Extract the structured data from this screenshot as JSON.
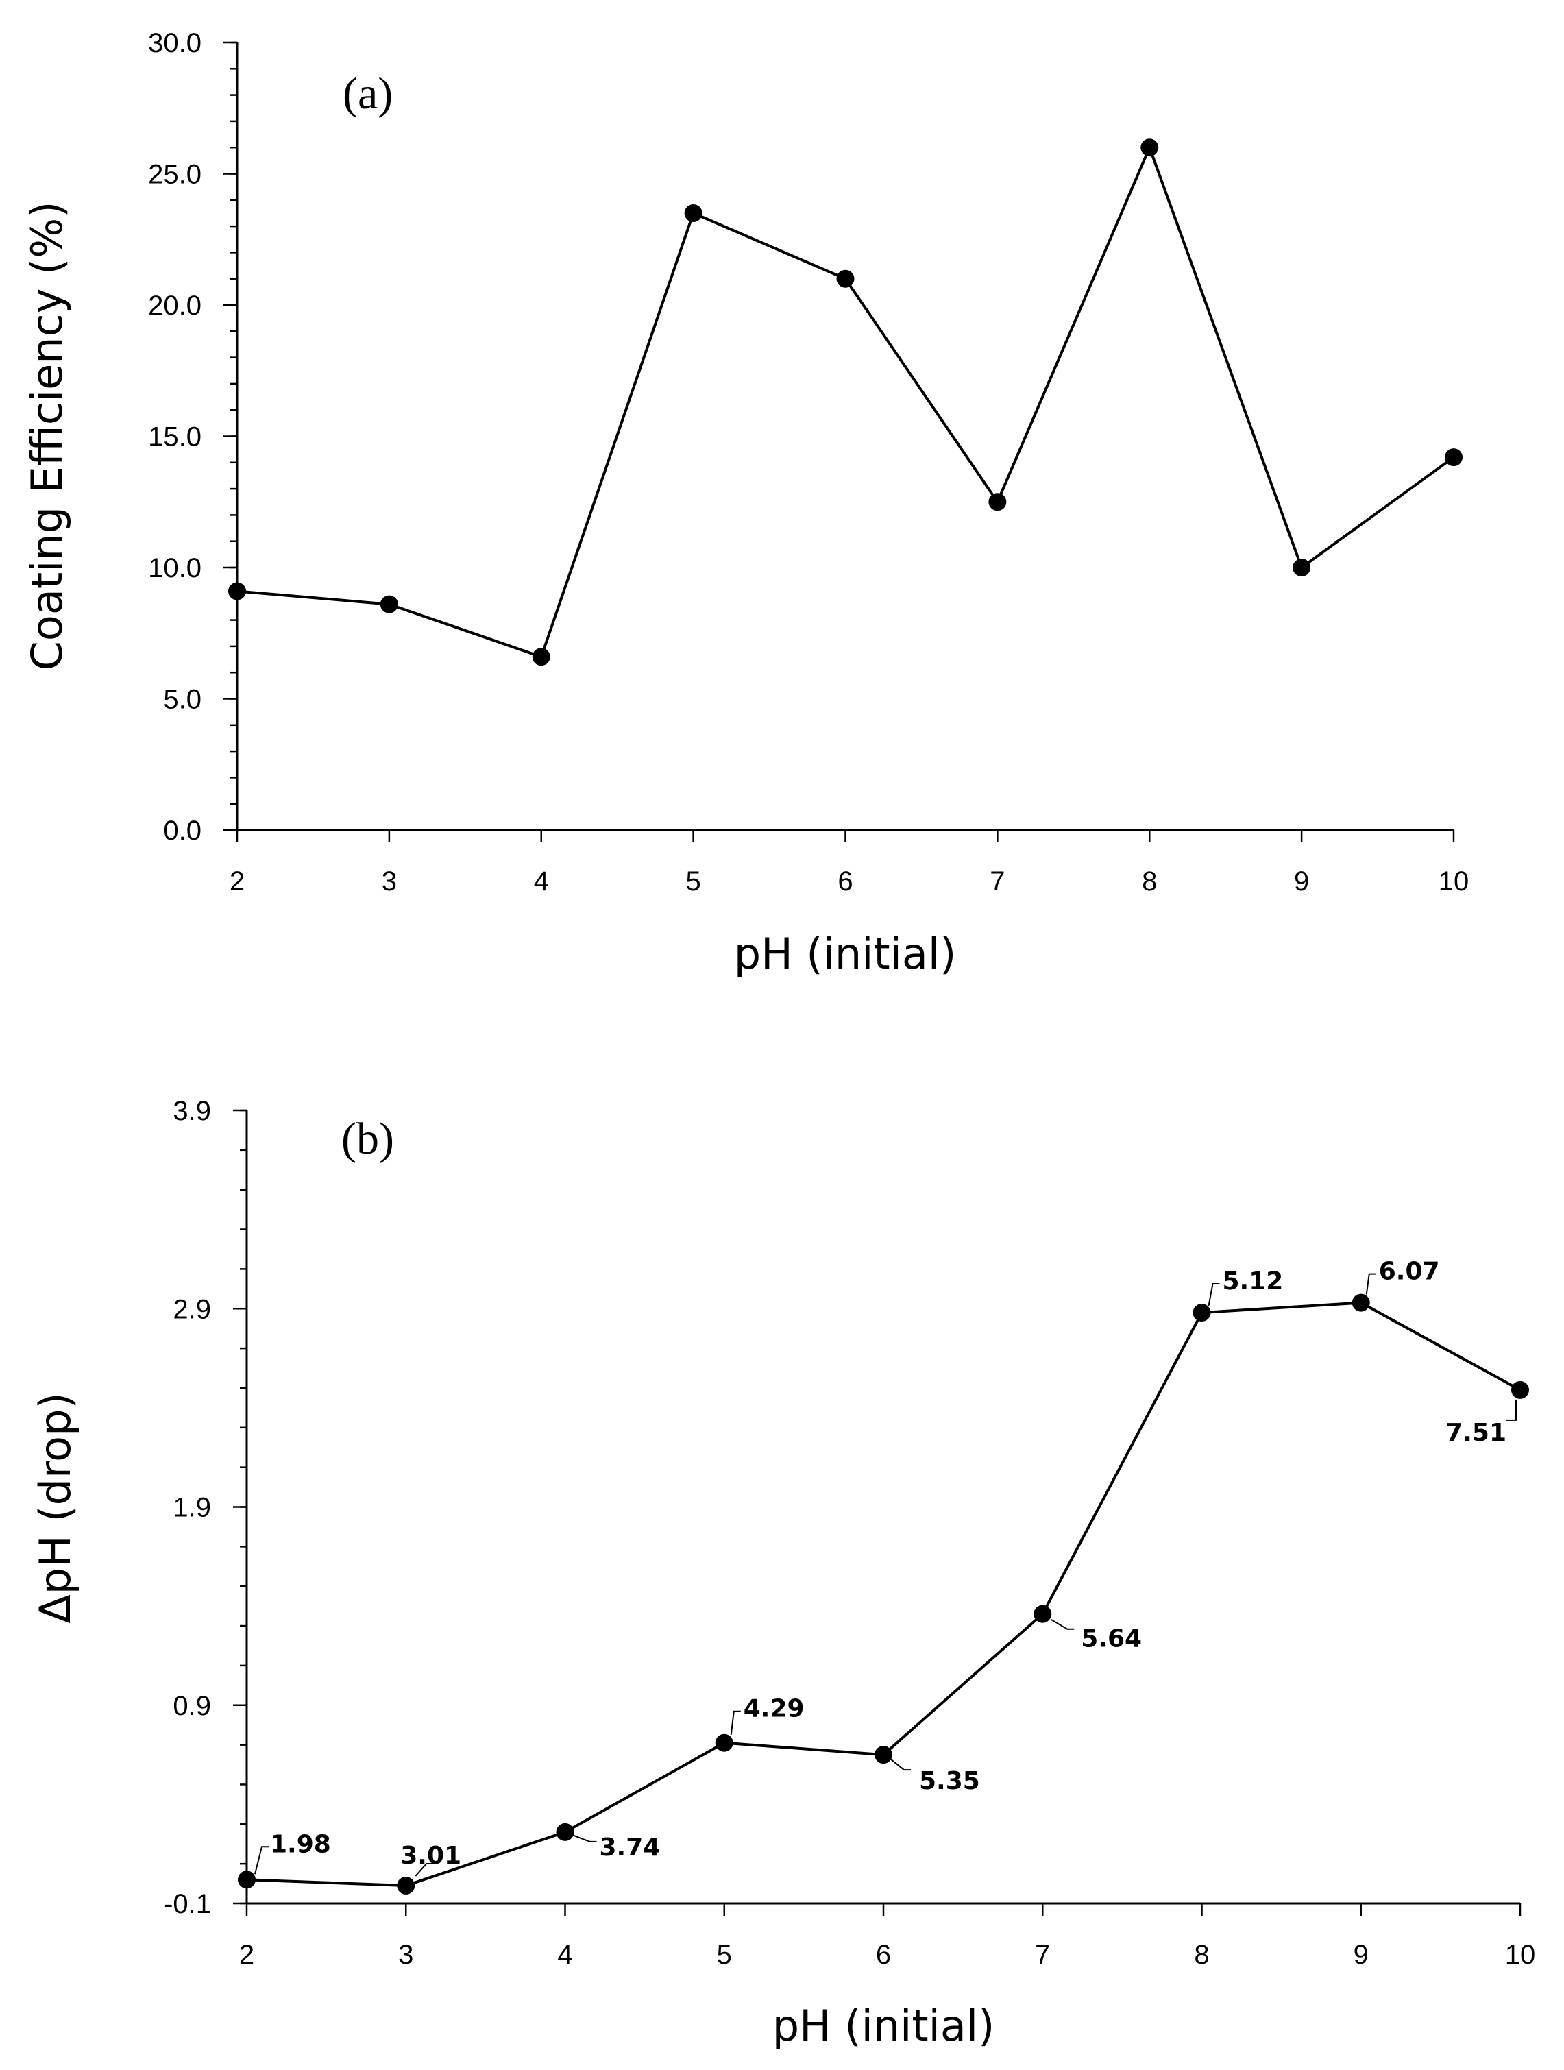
{
  "chart_data": [
    {
      "type": "line",
      "panel_label": "(a)",
      "xlabel": "pH (initial)",
      "ylabel": "Coating Efficiency (%)",
      "x": [
        2,
        3,
        4,
        5,
        6,
        7,
        8,
        9,
        10
      ],
      "x_tick_labels": [
        "2",
        "3",
        "4",
        "5",
        "6",
        "7",
        "8",
        "9",
        "10"
      ],
      "xlim": [
        2,
        10
      ],
      "series": [
        {
          "name": "Coating Efficiency",
          "values": [
            9.1,
            8.6,
            6.6,
            23.5,
            21.0,
            12.5,
            26.0,
            10.0,
            14.2
          ]
        }
      ],
      "ylim": [
        0,
        30
      ],
      "y_ticks": [
        0,
        5,
        10,
        15,
        20,
        25,
        30
      ],
      "y_tick_labels": [
        "0.0",
        "5.0",
        "10.0",
        "15.0",
        "20.0",
        "25.0",
        "30.0"
      ],
      "y_minor_step": 1,
      "grid": false
    },
    {
      "type": "line",
      "panel_label": "(b)",
      "xlabel": "pH (initial)",
      "ylabel": "ΔpH (drop)",
      "x": [
        2,
        3,
        4,
        5,
        6,
        7,
        8,
        9,
        10
      ],
      "x_tick_labels": [
        "2",
        "3",
        "4",
        "5",
        "6",
        "7",
        "8",
        "9",
        "10"
      ],
      "xlim": [
        2,
        10
      ],
      "series": [
        {
          "name": "ΔpH",
          "values": [
            0.02,
            -0.01,
            0.26,
            0.71,
            0.65,
            1.36,
            2.88,
            2.93,
            2.49
          ]
        }
      ],
      "data_labels": [
        "1.98",
        "3.01",
        "3.74",
        "4.29",
        "5.35",
        "5.64",
        "5.12",
        "6.07",
        "7.51"
      ],
      "ylim": [
        -0.1,
        3.9
      ],
      "y_ticks": [
        -0.1,
        0.9,
        1.9,
        2.9,
        3.9
      ],
      "y_tick_labels": [
        "-0.1",
        "0.9",
        "1.9",
        "2.9",
        "3.9"
      ],
      "y_minor_step": 0.2,
      "grid": false
    }
  ]
}
